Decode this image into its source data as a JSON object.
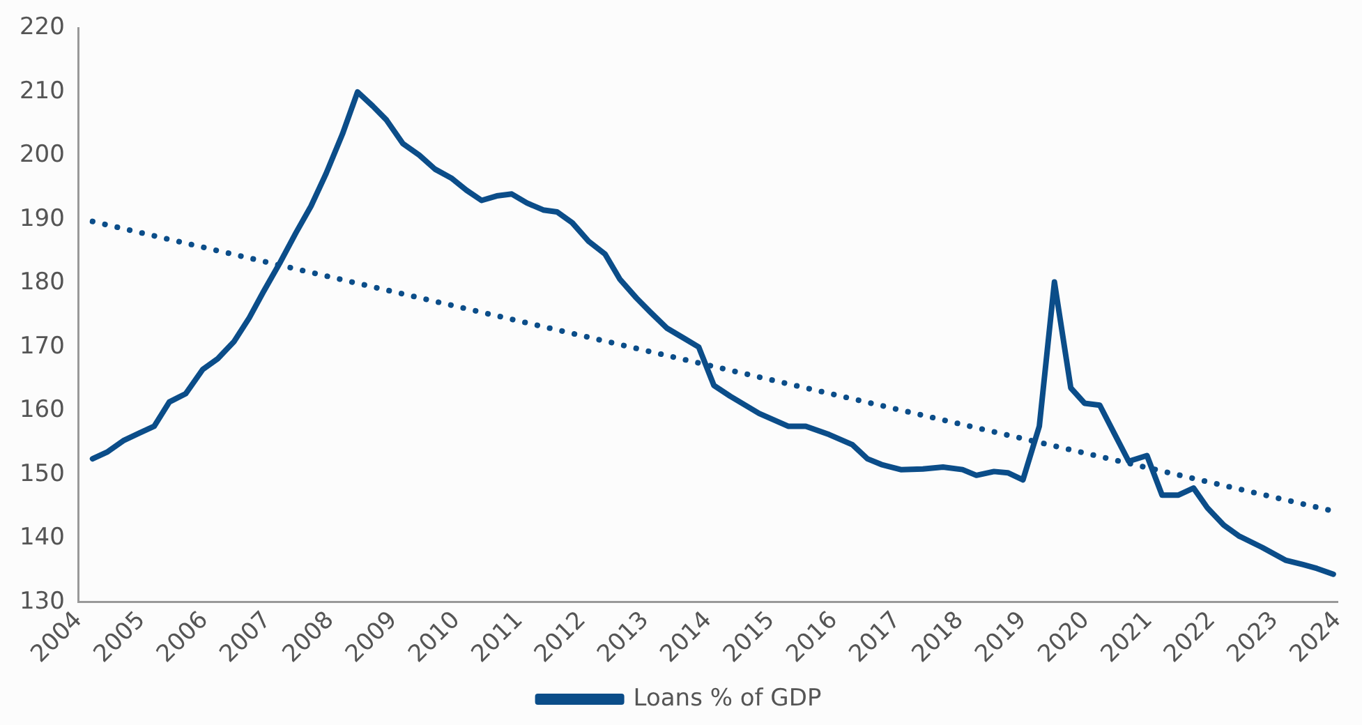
{
  "chart_data": {
    "type": "line",
    "legend": "bottom",
    "grid": false,
    "marker": "none",
    "xlim": [
      2004,
      2024
    ],
    "xticks": [
      2004,
      2005,
      2006,
      2007,
      2008,
      2009,
      2010,
      2011,
      2012,
      2013,
      2014,
      2015,
      2016,
      2017,
      2018,
      2019,
      2020,
      2021,
      2022,
      2023,
      2024
    ],
    "ylim": [
      130,
      220
    ],
    "yticks": [
      130,
      140,
      150,
      160,
      170,
      180,
      190,
      200,
      210,
      220
    ],
    "series": [
      {
        "name": "Loans % of GDP",
        "color": "#0b4d89",
        "line_style": "solid",
        "x": [
          2004.22,
          2004.46,
          2004.72,
          2004.96,
          2005.2,
          2005.44,
          2005.7,
          2005.97,
          2006.21,
          2006.47,
          2006.71,
          2006.93,
          2007.19,
          2007.45,
          2007.69,
          2007.93,
          2008.19,
          2008.43,
          2008.67,
          2008.89,
          2009.15,
          2009.41,
          2009.66,
          2009.92,
          2010.16,
          2010.4,
          2010.64,
          2010.88,
          2011.12,
          2011.38,
          2011.6,
          2011.84,
          2012.1,
          2012.36,
          2012.6,
          2012.86,
          2013.08,
          2013.34,
          2013.63,
          2013.85,
          2014.09,
          2014.35,
          2014.81,
          2015.27,
          2015.55,
          2015.92,
          2016.29,
          2016.53,
          2016.75,
          2017.06,
          2017.41,
          2017.73,
          2018.04,
          2018.26,
          2018.54,
          2018.76,
          2019,
          2019.26,
          2019.5,
          2019.76,
          2019.98,
          2020.22,
          2020.46,
          2020.68,
          2020.97,
          2021.21,
          2021.47,
          2021.71,
          2021.93,
          2022.19,
          2022.43,
          2022.8,
          2023.17,
          2023.45,
          2023.67,
          2023.93
        ],
        "values": [
          152.5,
          153.6,
          155.4,
          156.5,
          157.6,
          161.4,
          162.7,
          166.5,
          168.2,
          170.9,
          174.6,
          178.6,
          183.1,
          187.9,
          192.1,
          197.2,
          203.4,
          210,
          207.8,
          205.6,
          201.9,
          200.1,
          197.9,
          196.5,
          194.6,
          193,
          193.7,
          194,
          192.6,
          191.5,
          191.2,
          189.5,
          186.6,
          184.6,
          180.6,
          177.7,
          175.5,
          173,
          171.3,
          170,
          164,
          162.3,
          159.6,
          157.6,
          157.6,
          156.3,
          154.7,
          152.5,
          151.6,
          150.8,
          150.9,
          151.2,
          150.8,
          149.9,
          150.5,
          150.3,
          149.2,
          157.6,
          180.2,
          163.6,
          161.2,
          160.9,
          156.3,
          152.1,
          153,
          146.8,
          146.8,
          147.9,
          144.8,
          142.1,
          140.4,
          138.6,
          136.6,
          135.9,
          135.3,
          134.4
        ]
      },
      {
        "color": "#0b4d89",
        "line_style": "dotted",
        "x": [
          2004.22,
          2023.93
        ],
        "values": [
          189.7,
          144.3
        ]
      }
    ]
  }
}
